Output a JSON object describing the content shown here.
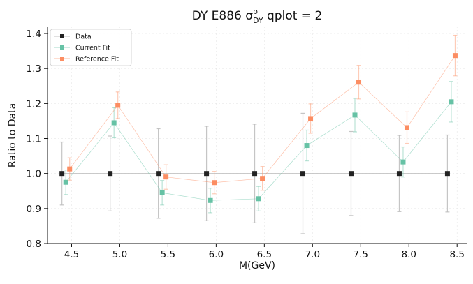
{
  "chart_data": {
    "type": "scatter",
    "title": {
      "prefix": "DY E886 σ",
      "sup": "p",
      "sub": "DY",
      "suffix": " qplot = 2"
    },
    "xlabel": "M(GeV)",
    "ylabel": "Ratio to Data",
    "xlim": [
      4.25,
      8.6
    ],
    "ylim": [
      0.8,
      1.42
    ],
    "xticks": [
      "4.5",
      "5.0",
      "5.5",
      "6.0",
      "6.5",
      "7.0",
      "7.5",
      "8.0",
      "8.5"
    ],
    "yticks": [
      "0.8",
      "0.9",
      "1.0",
      "1.1",
      "1.2",
      "1.3",
      "1.4"
    ],
    "grid": true,
    "legend_position": "top-left",
    "series": [
      {
        "name": "Data",
        "color": "#222222",
        "bar_color": "#bbbbbb",
        "x": [
          4.4,
          4.9,
          5.4,
          5.9,
          6.4,
          6.9,
          7.4,
          7.9,
          8.4
        ],
        "y": [
          1.0,
          1.0,
          1.0,
          1.0,
          1.0,
          1.0,
          1.0,
          1.0,
          1.0
        ],
        "err": [
          0.09,
          0.107,
          0.128,
          0.135,
          0.141,
          0.172,
          0.12,
          0.109,
          0.11
        ]
      },
      {
        "name": "Current Fit",
        "color": "#66c2a5",
        "bar_color": "#66c2a5",
        "x": [
          4.44,
          4.94,
          5.44,
          5.94,
          6.44,
          6.94,
          7.44,
          7.94,
          8.44
        ],
        "y": [
          0.975,
          1.145,
          0.945,
          0.923,
          0.928,
          1.08,
          1.167,
          1.033,
          1.205
        ],
        "err": [
          0.035,
          0.043,
          0.035,
          0.035,
          0.035,
          0.044,
          0.048,
          0.043,
          0.058
        ]
      },
      {
        "name": "Reference Fit",
        "color": "#fc8d62",
        "bar_color": "#fc8d62",
        "x": [
          4.48,
          4.98,
          5.48,
          5.98,
          6.48,
          6.98,
          7.48,
          7.98,
          8.48
        ],
        "y": [
          1.013,
          1.195,
          0.99,
          0.974,
          0.986,
          1.157,
          1.261,
          1.131,
          1.337
        ],
        "err": [
          0.032,
          0.038,
          0.035,
          0.032,
          0.034,
          0.042,
          0.048,
          0.045,
          0.058
        ]
      }
    ]
  }
}
